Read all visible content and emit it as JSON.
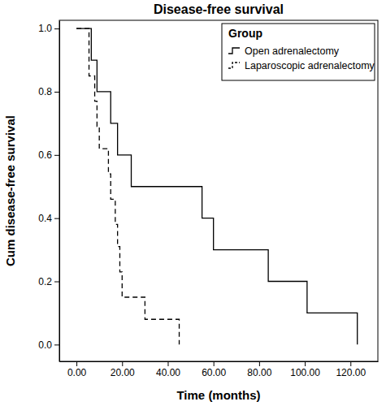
{
  "chart_data": {
    "type": "step",
    "title": "Disease-free survival",
    "x_label": "Time (months)",
    "y_label": "Cum disease-free survival",
    "legend_title": "Group",
    "legend": "top-right",
    "grid": false,
    "xlim": [
      -7.5,
      132
    ],
    "ylim": [
      -0.053,
      1.026
    ],
    "xticks": [
      {
        "value": 0,
        "label": "0.00"
      },
      {
        "value": 20,
        "label": "20.00"
      },
      {
        "value": 40,
        "label": "40.00"
      },
      {
        "value": 60,
        "label": "60.00"
      },
      {
        "value": 80,
        "label": "80.00"
      },
      {
        "value": 100,
        "label": "100.00"
      },
      {
        "value": 120,
        "label": "120.00"
      }
    ],
    "yticks": [
      {
        "value": 0,
        "label": "0.0"
      },
      {
        "value": 0.2,
        "label": "0.2"
      },
      {
        "value": 0.4,
        "label": "0.4"
      },
      {
        "value": 0.6,
        "label": "0.6"
      },
      {
        "value": 0.8,
        "label": "0.8"
      },
      {
        "value": 1,
        "label": "1.0"
      }
    ],
    "series": [
      {
        "name": "Open adrenalectomy",
        "color": "#000000",
        "line_style": "solid",
        "x": [
          0,
          6.5,
          9,
          15,
          18,
          24,
          55,
          60,
          84,
          101,
          123
        ],
        "values": [
          1,
          0.9,
          0.8,
          0.7,
          0.6,
          0.5,
          0.4,
          0.3,
          0.2,
          0.1,
          0
        ]
      },
      {
        "name": "Laparoscopic adrenalectomy",
        "color": "#000000",
        "line_style": "dashed",
        "x": [
          0,
          5.5,
          8,
          9,
          10,
          14,
          15,
          17,
          18,
          19,
          20,
          30,
          45
        ],
        "values": [
          1,
          0.85,
          0.77,
          0.69,
          0.62,
          0.54,
          0.46,
          0.38,
          0.31,
          0.23,
          0.15,
          0.08,
          0
        ]
      }
    ]
  }
}
